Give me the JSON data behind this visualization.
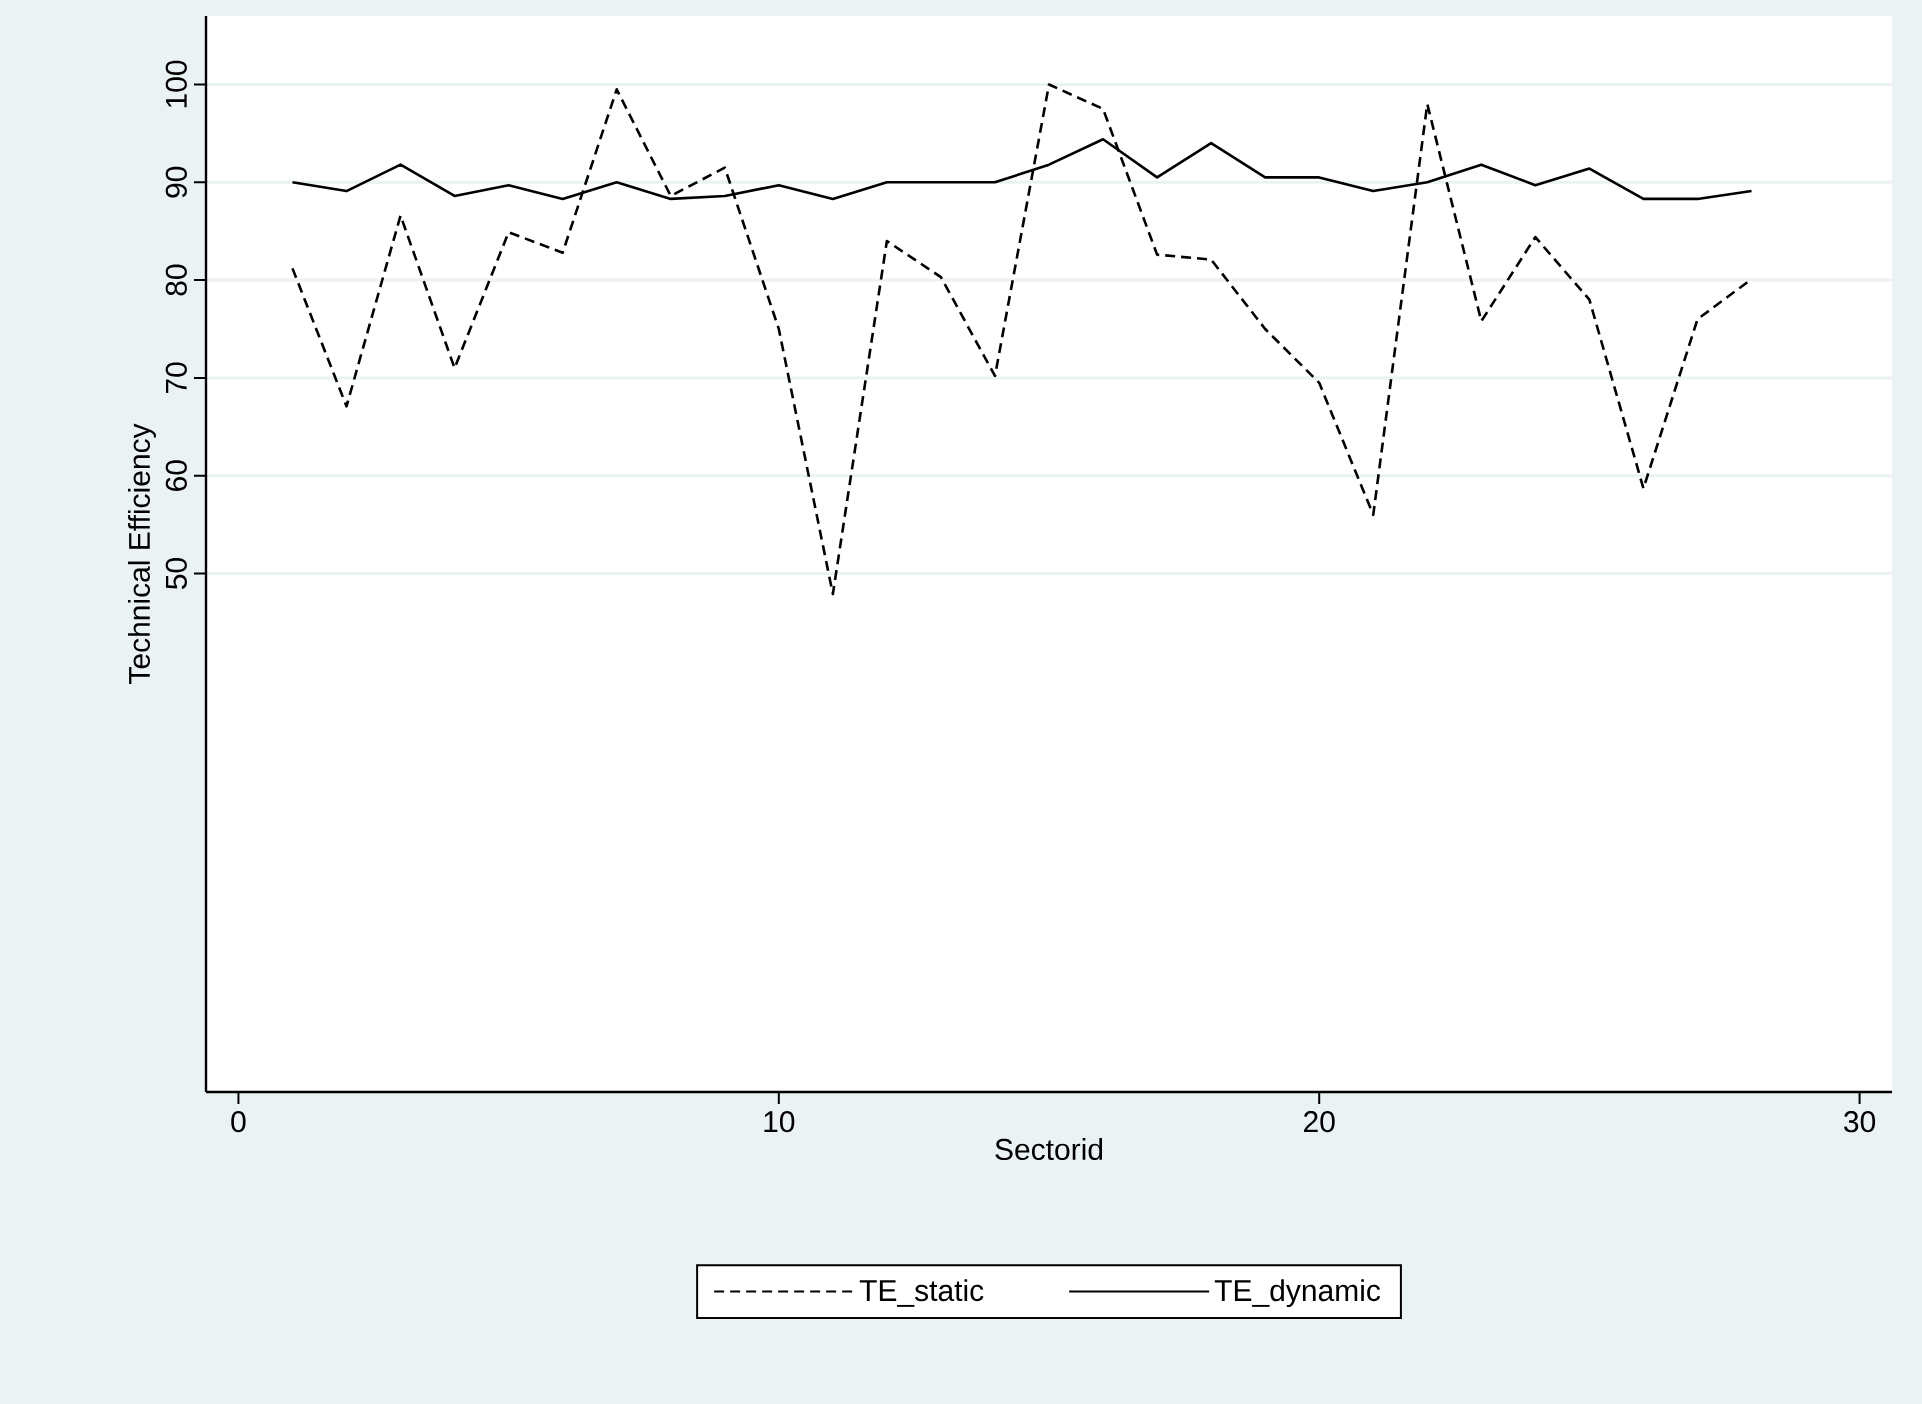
{
  "chart_data": {
    "type": "line",
    "xlabel": "Sectorid",
    "ylabel": "Technical Efficiency",
    "x": [
      1,
      2,
      3,
      4,
      5,
      6,
      7,
      8,
      9,
      10,
      11,
      12,
      13,
      14,
      15,
      16,
      17,
      18,
      19,
      20,
      21,
      22,
      23,
      24,
      25,
      26,
      27,
      28
    ],
    "series": [
      {
        "name": "TE_static",
        "color": "#000000",
        "line_style": "dashed",
        "values": [
          81.2,
          67.1,
          86.6,
          71.0,
          84.9,
          82.8,
          99.5,
          88.6,
          91.5,
          75.0,
          47.9,
          84.0,
          80.3,
          70.2,
          100.0,
          97.5,
          82.6,
          82.1,
          75.0,
          69.5,
          56.0,
          98.0,
          75.8,
          84.4,
          78.0,
          58.7,
          76.0,
          80.1
        ]
      },
      {
        "name": "TE_dynamic",
        "color": "#000000",
        "line_style": "solid",
        "values": [
          90.0,
          89.1,
          91.8,
          88.6,
          89.7,
          88.3,
          90.0,
          88.3,
          88.6,
          89.7,
          88.3,
          90.0,
          90.0,
          90.0,
          91.8,
          94.4,
          90.5,
          94.0,
          90.5,
          90.5,
          89.1,
          90.0,
          91.8,
          89.7,
          91.4,
          88.3,
          88.3,
          89.1
        ]
      }
    ],
    "xlim": [
      -0.6,
      30.6
    ],
    "ylim": [
      -3,
      107
    ],
    "xticks": [
      0,
      10,
      20,
      30
    ],
    "yticks": [
      50,
      60,
      70,
      80,
      90,
      100
    ],
    "grid": "y",
    "legend": "bottom"
  }
}
